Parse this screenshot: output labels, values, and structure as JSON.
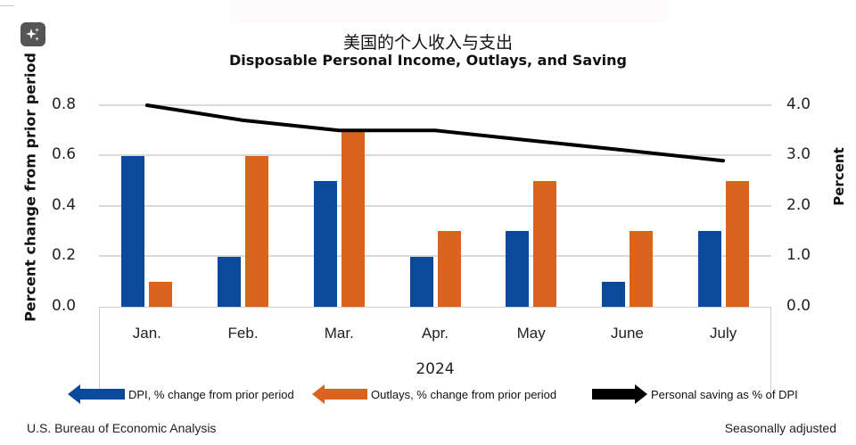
{
  "chart_data": {
    "type": "bar",
    "title": "美国的个人收入与支出",
    "subtitle": "Disposable Personal Income, Outlays, and Saving",
    "categories": [
      "Jan.",
      "Feb.",
      "Mar.",
      "Apr.",
      "May",
      "June",
      "July"
    ],
    "xlabel": "2024",
    "ylabel": "Percent change from prior period",
    "ylabel_right": "Percent",
    "ylim": [
      0,
      0.8
    ],
    "ylim_right": [
      0,
      4.0
    ],
    "yticks": [
      "0.0",
      "0.2",
      "0.4",
      "0.6",
      "0.8"
    ],
    "yticks_right": [
      "0.0",
      "1.0",
      "2.0",
      "3.0",
      "4.0"
    ],
    "grid": true,
    "legend_position": "bottom",
    "series": [
      {
        "name": "DPI, % change from prior period",
        "type": "bar",
        "axis": "left",
        "color": "#0b4a9b",
        "values": [
          0.6,
          0.2,
          0.5,
          0.2,
          0.3,
          0.1,
          0.3
        ]
      },
      {
        "name": "Outlays, % change from prior period",
        "type": "bar",
        "axis": "left",
        "color": "#d9641d",
        "values": [
          0.1,
          0.6,
          0.7,
          0.3,
          0.5,
          0.3,
          0.5
        ]
      },
      {
        "name": "Personal saving as % of DPI",
        "type": "line",
        "axis": "right",
        "color": "#000000",
        "values": [
          4.0,
          3.7,
          3.5,
          3.5,
          3.3,
          3.1,
          2.9
        ]
      }
    ]
  },
  "header": {
    "title_cn": "美国的个人收入与支出",
    "title_en": "Disposable Personal Income, Outlays, and Saving"
  },
  "axes": {
    "left_label": "Percent change from prior period",
    "right_label": "Percent",
    "left_ticks": [
      "0.8",
      "0.6",
      "0.4",
      "0.2",
      "0.0"
    ],
    "right_ticks": [
      "4.0",
      "3.0",
      "2.0",
      "1.0",
      "0.0"
    ],
    "categories": [
      "Jan.",
      "Feb.",
      "Mar.",
      "Apr.",
      "May",
      "June",
      "July"
    ],
    "year": "2024"
  },
  "legend": {
    "dpi": "DPI, % change from prior period",
    "outlays": "Outlays, % change from prior period",
    "saving": "Personal saving as % of DPI"
  },
  "footer": {
    "source": "U.S. Bureau of Economic Analysis",
    "note": "Seasonally adjusted"
  },
  "icons": {
    "ai_button": "sparkles-icon"
  }
}
